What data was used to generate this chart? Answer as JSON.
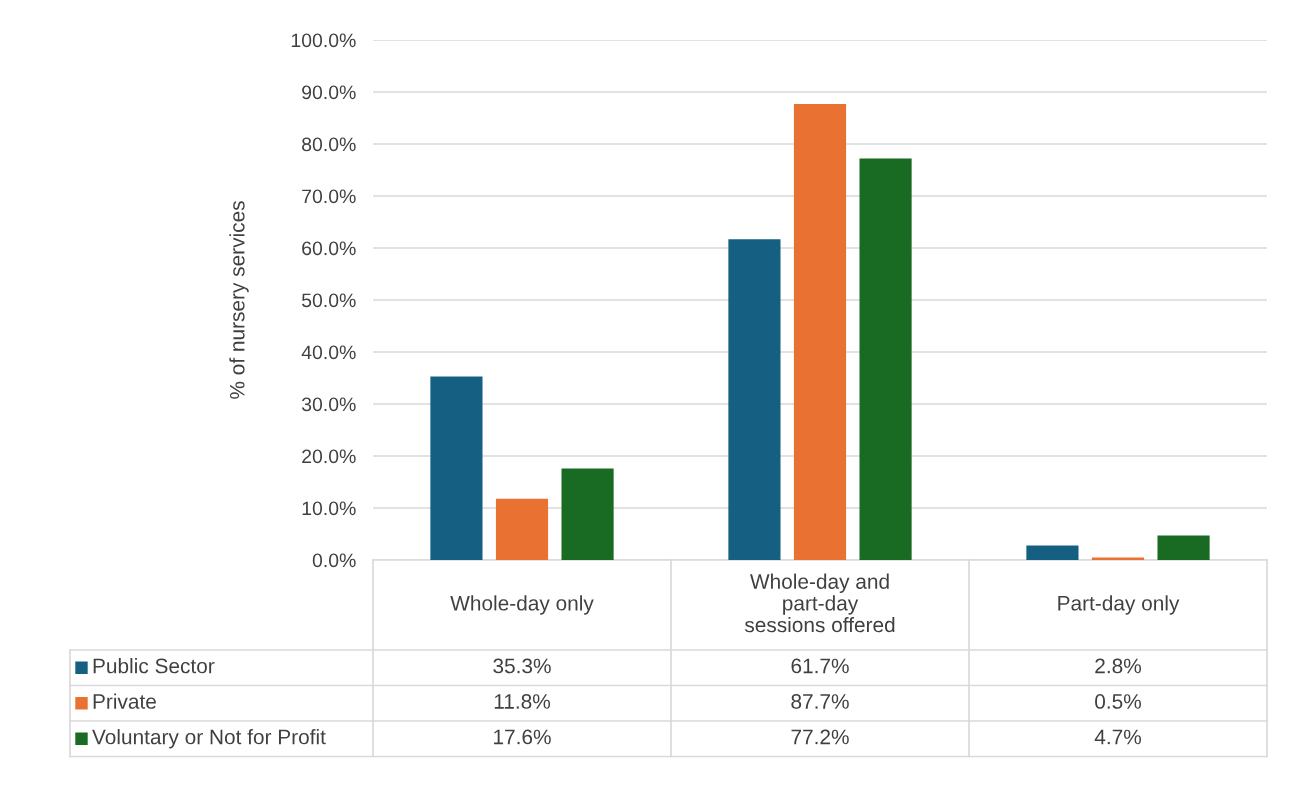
{
  "chart_data": {
    "type": "bar",
    "ylabel": "% of nursery services",
    "categories": [
      "Whole-day only",
      "Whole-day and\npart-day\nsessions offered",
      "Part-day only"
    ],
    "series": [
      {
        "name": "Public Sector",
        "color": "#156082",
        "values": [
          35.3,
          61.7,
          2.8
        ],
        "value_labels": [
          "35.3%",
          "61.7%",
          "2.8%"
        ]
      },
      {
        "name": "Private",
        "color": "#e97132",
        "values": [
          11.8,
          87.7,
          0.5
        ],
        "value_labels": [
          "11.8%",
          "87.7%",
          "0.5%"
        ]
      },
      {
        "name": "Voluntary or Not for Profit",
        "color": "#196b24",
        "values": [
          17.6,
          77.2,
          4.7
        ],
        "value_labels": [
          "17.6%",
          "77.2%",
          "4.7%"
        ]
      }
    ],
    "ylim": [
      0,
      100
    ],
    "yticks": [
      {
        "value": 0,
        "label": "0.0%"
      },
      {
        "value": 10,
        "label": "10.0%"
      },
      {
        "value": 20,
        "label": "20.0%"
      },
      {
        "value": 30,
        "label": "30.0%"
      },
      {
        "value": 40,
        "label": "40.0%"
      },
      {
        "value": 50,
        "label": "50.0%"
      },
      {
        "value": 60,
        "label": "60.0%"
      },
      {
        "value": 70,
        "label": "70.0%"
      },
      {
        "value": 80,
        "label": "80.0%"
      },
      {
        "value": 90,
        "label": "90.0%"
      },
      {
        "value": 100,
        "label": "100.0%"
      }
    ],
    "grid": "y",
    "legend": "bottom"
  }
}
